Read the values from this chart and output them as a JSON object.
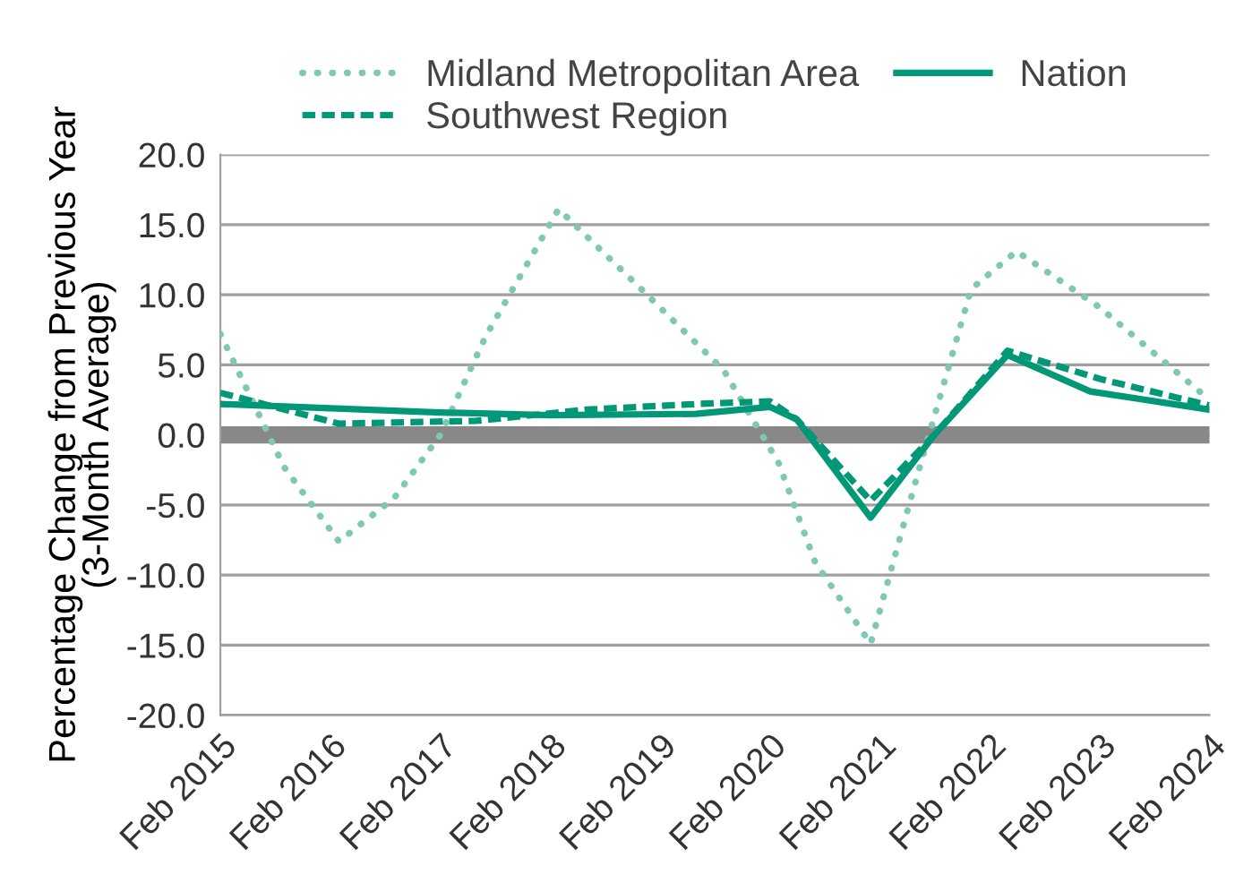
{
  "chart_data": {
    "type": "line",
    "ylabel": "Percentage Change from Previous Year\n(3-Month Average)",
    "series": [
      {
        "name": "Midland Metropolitan Area",
        "color": "#7fc8b2",
        "line_style": "dotted",
        "x": [
          "2015-02",
          "2015-09",
          "2016-03",
          "2016-09",
          "2017-02",
          "2017-07",
          "2018-03",
          "2018-12",
          "2019-09",
          "2020-03",
          "2020-07",
          "2021-01",
          "2021-06",
          "2021-12",
          "2022-05",
          "2023-02",
          "2024-02"
        ],
        "values": [
          7.2,
          -2.3,
          -7.6,
          -4.5,
          0,
          7,
          16.1,
          10.4,
          4.6,
          -2,
          -9.1,
          -14.9,
          -3.2,
          10.4,
          13.1,
          9.1,
          2.5
        ]
      },
      {
        "name": "Southwest Region",
        "color": "#009877",
        "line_style": "dashed",
        "x": [
          "2015-02",
          "2016-03",
          "2017-06",
          "2018-06",
          "2019-06",
          "2020-02",
          "2020-05",
          "2021-01",
          "2021-08",
          "2022-04",
          "2023-02",
          "2024-02"
        ],
        "values": [
          3.0,
          0.8,
          1.0,
          1.8,
          2.2,
          2.4,
          1.1,
          -4.7,
          0,
          6.0,
          4.0,
          2.1
        ]
      },
      {
        "name": "Nation",
        "color": "#009877",
        "line_style": "solid",
        "x": [
          "2015-02",
          "2016-02",
          "2017-02",
          "2018-02",
          "2019-06",
          "2020-02",
          "2020-05",
          "2021-01",
          "2021-08",
          "2022-04",
          "2023-01",
          "2024-02"
        ],
        "values": [
          2.2,
          1.9,
          1.6,
          1.4,
          1.5,
          2.0,
          1.1,
          -5.9,
          0,
          5.7,
          3.1,
          1.8
        ]
      }
    ],
    "xlim": [
      "2015-02",
      "2024-02"
    ],
    "xticks": [
      {
        "value": "2015-02",
        "label": "Feb 2015"
      },
      {
        "value": "2016-02",
        "label": "Feb 2016"
      },
      {
        "value": "2017-02",
        "label": "Feb 2017"
      },
      {
        "value": "2018-02",
        "label": "Feb 2018"
      },
      {
        "value": "2019-02",
        "label": "Feb 2019"
      },
      {
        "value": "2020-02",
        "label": "Feb 2020"
      },
      {
        "value": "2021-02",
        "label": "Feb 2021"
      },
      {
        "value": "2022-02",
        "label": "Feb 2022"
      },
      {
        "value": "2023-02",
        "label": "Feb 2023"
      },
      {
        "value": "2024-02",
        "label": "Feb 2024"
      }
    ],
    "ylim": [
      -20,
      20
    ],
    "yticks": [
      {
        "value": -20,
        "label": "-20.0"
      },
      {
        "value": -15,
        "label": "-15.0"
      },
      {
        "value": -10,
        "label": "-10.0"
      },
      {
        "value": -5,
        "label": "-5.0"
      },
      {
        "value": 0,
        "label": "0.0"
      },
      {
        "value": 5,
        "label": "5.0"
      },
      {
        "value": 10,
        "label": "10.0"
      },
      {
        "value": 15,
        "label": "15.0"
      },
      {
        "value": 20,
        "label": "20.0"
      }
    ],
    "ref_lines": [
      {
        "axis": "y",
        "value": 0,
        "color": "#888888"
      }
    ],
    "grid": "y",
    "legend": "top"
  }
}
